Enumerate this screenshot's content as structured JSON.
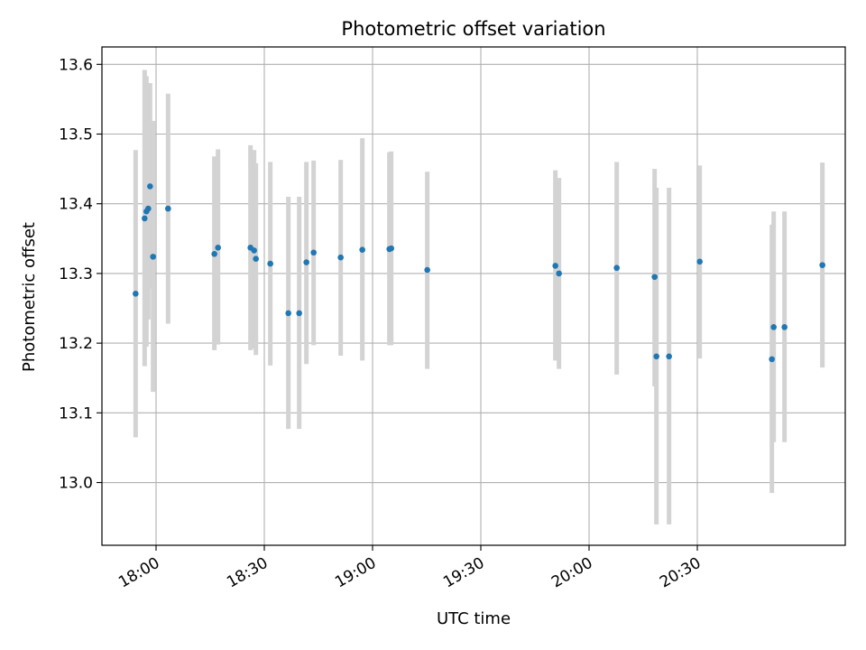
{
  "chart_data": {
    "type": "scatter",
    "title": "Photometric offset variation",
    "xlabel": "UTC time",
    "ylabel": "Photometric offset",
    "grid": true,
    "x_axis_type": "time",
    "xlim": [
      "17:45",
      "21:11"
    ],
    "ylim": [
      12.91,
      13.625
    ],
    "x_ticks": [
      "18:00",
      "18:30",
      "19:00",
      "19:30",
      "20:00",
      "20:30"
    ],
    "y_ticks": [
      "13.0",
      "13.1",
      "13.2",
      "13.3",
      "13.4",
      "13.5",
      "13.6"
    ],
    "marker_color": "#1f77b4",
    "errorbar_color": "#d3d3d3",
    "points": [
      {
        "x": "17:54:20",
        "y": 13.271,
        "ylow": 13.065,
        "yhigh": 13.477
      },
      {
        "x": "17:56:50",
        "y": 13.379,
        "ylow": 13.167,
        "yhigh": 13.592
      },
      {
        "x": "17:57:20",
        "y": 13.389,
        "ylow": 13.195,
        "yhigh": 13.583
      },
      {
        "x": "17:57:50",
        "y": 13.393,
        "ylow": 13.234,
        "yhigh": 13.573
      },
      {
        "x": "17:58:20",
        "y": 13.425,
        "ylow": 13.278,
        "yhigh": 13.573
      },
      {
        "x": "17:59:10",
        "y": 13.324,
        "ylow": 13.13,
        "yhigh": 13.519
      },
      {
        "x": "18:03:20",
        "y": 13.393,
        "ylow": 13.228,
        "yhigh": 13.558
      },
      {
        "x": "18:16:10",
        "y": 13.328,
        "ylow": 13.19,
        "yhigh": 13.468
      },
      {
        "x": "18:17:10",
        "y": 13.337,
        "ylow": 13.198,
        "yhigh": 13.478
      },
      {
        "x": "18:26:10",
        "y": 13.337,
        "ylow": 13.19,
        "yhigh": 13.484
      },
      {
        "x": "18:27:10",
        "y": 13.333,
        "ylow": 13.192,
        "yhigh": 13.477
      },
      {
        "x": "18:27:40",
        "y": 13.321,
        "ylow": 13.183,
        "yhigh": 13.458
      },
      {
        "x": "18:31:40",
        "y": 13.314,
        "ylow": 13.168,
        "yhigh": 13.46
      },
      {
        "x": "18:36:40",
        "y": 13.243,
        "ylow": 13.077,
        "yhigh": 13.41
      },
      {
        "x": "18:39:40",
        "y": 13.243,
        "ylow": 13.077,
        "yhigh": 13.41
      },
      {
        "x": "18:41:40",
        "y": 13.316,
        "ylow": 13.17,
        "yhigh": 13.46
      },
      {
        "x": "18:43:40",
        "y": 13.33,
        "ylow": 13.197,
        "yhigh": 13.462
      },
      {
        "x": "18:51:10",
        "y": 13.323,
        "ylow": 13.182,
        "yhigh": 13.463
      },
      {
        "x": "18:57:10",
        "y": 13.334,
        "ylow": 13.175,
        "yhigh": 13.494
      },
      {
        "x": "19:04:40",
        "y": 13.335,
        "ylow": 13.197,
        "yhigh": 13.474
      },
      {
        "x": "19:05:10",
        "y": 13.336,
        "ylow": 13.197,
        "yhigh": 13.475
      },
      {
        "x": "19:15:10",
        "y": 13.305,
        "ylow": 13.163,
        "yhigh": 13.446
      },
      {
        "x": "19:50:40",
        "y": 13.311,
        "ylow": 13.175,
        "yhigh": 13.448
      },
      {
        "x": "19:51:40",
        "y": 13.3,
        "ylow": 13.163,
        "yhigh": 13.437
      },
      {
        "x": "20:07:40",
        "y": 13.308,
        "ylow": 13.155,
        "yhigh": 13.46
      },
      {
        "x": "20:18:10",
        "y": 13.295,
        "ylow": 13.138,
        "yhigh": 13.45
      },
      {
        "x": "20:18:40",
        "y": 13.181,
        "ylow": 12.94,
        "yhigh": 13.423
      },
      {
        "x": "20:22:10",
        "y": 13.181,
        "ylow": 12.94,
        "yhigh": 13.423
      },
      {
        "x": "20:30:40",
        "y": 13.317,
        "ylow": 13.178,
        "yhigh": 13.455
      },
      {
        "x": "20:50:40",
        "y": 13.177,
        "ylow": 12.985,
        "yhigh": 13.37
      },
      {
        "x": "20:51:10",
        "y": 13.223,
        "ylow": 13.058,
        "yhigh": 13.389
      },
      {
        "x": "20:54:10",
        "y": 13.223,
        "ylow": 13.058,
        "yhigh": 13.389
      },
      {
        "x": "21:04:40",
        "y": 13.312,
        "ylow": 13.165,
        "yhigh": 13.459
      }
    ]
  }
}
